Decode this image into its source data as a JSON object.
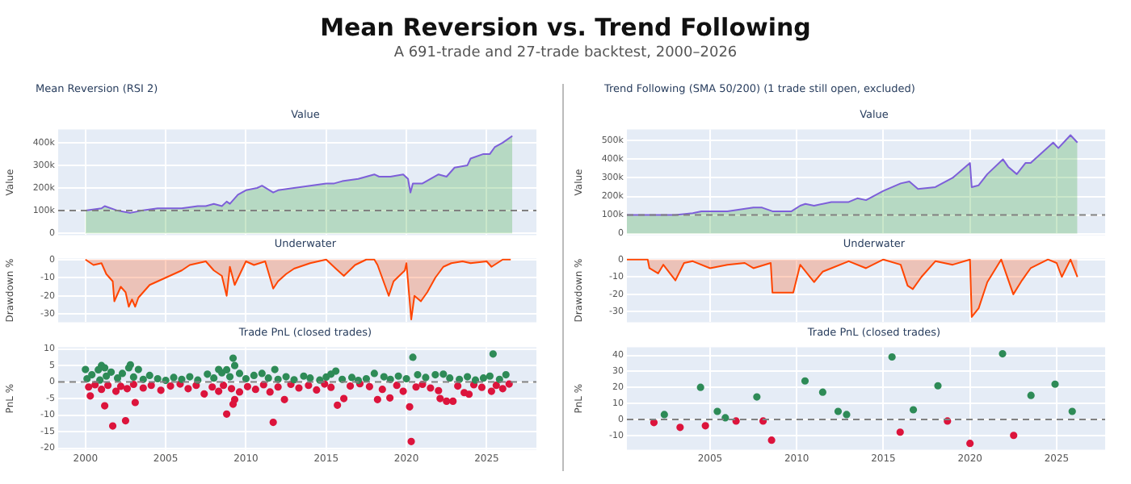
{
  "chart_data": [
    {
      "type": "area",
      "title": "Value",
      "ylabel": "Value",
      "annotations": [
        "Mean Reversion vs. Trend Following",
        "A 691-trade and 27-trade backtest, 2000–2026",
        "Mean Reversion (RSI 2)"
      ],
      "xlim": [
        1998.3,
        2028.1
      ],
      "xticks": [
        2000,
        2005,
        2010,
        2015,
        2020,
        2025
      ],
      "ylim": [
        -8000,
        458000
      ],
      "yticks": [
        0,
        {
          "value": 100000,
          "label": "100k"
        },
        {
          "value": 200000,
          "label": "200k"
        },
        {
          "value": 300000,
          "label": "300k"
        },
        {
          "value": 400000,
          "label": "400k"
        }
      ],
      "grid": true,
      "legend": false,
      "tick_labels": "y",
      "ref_lines": [
        {
          "axis": "y",
          "value": 100000,
          "color": "#808080",
          "line_style": "dashed"
        }
      ],
      "series": [
        {
          "color": "#2ca02c",
          "x": [
            2000,
            2001,
            2001.2,
            2002,
            2002.8,
            2003.5,
            2004.5,
            2005,
            2006,
            2007,
            2007.5,
            2008,
            2008.5,
            2008.8,
            2009,
            2009.5,
            2010,
            2010.7,
            2011,
            2011.7,
            2012,
            2013,
            2014,
            2015,
            2015.5,
            2016,
            2017,
            2018,
            2018.3,
            2019,
            2019.8,
            2020.1,
            2020.25,
            2020.4,
            2021,
            2022,
            2022.5,
            2023,
            2023.8,
            2024,
            2024.8,
            2025.2,
            2025.5,
            2026,
            2026.6
          ],
          "values": [
            100000,
            110000,
            120000,
            100000,
            90000,
            100000,
            110000,
            110000,
            110000,
            120000,
            120000,
            130000,
            120000,
            140000,
            130000,
            170000,
            190000,
            200000,
            210000,
            180000,
            190000,
            200000,
            210000,
            220000,
            220000,
            230000,
            240000,
            260000,
            250000,
            250000,
            260000,
            240000,
            180000,
            220000,
            220000,
            260000,
            250000,
            290000,
            300000,
            330000,
            350000,
            350000,
            380000,
            400000,
            430000
          ]
        },
        {
          "type": "line",
          "color": "#7d5fd9",
          "x": [
            2000,
            2001,
            2001.2,
            2002,
            2002.8,
            2003.5,
            2004.5,
            2005,
            2006,
            2007,
            2007.5,
            2008,
            2008.5,
            2008.8,
            2009,
            2009.5,
            2010,
            2010.7,
            2011,
            2011.7,
            2012,
            2013,
            2014,
            2015,
            2015.5,
            2016,
            2017,
            2018,
            2018.3,
            2019,
            2019.8,
            2020.1,
            2020.25,
            2020.4,
            2021,
            2022,
            2022.5,
            2023,
            2023.8,
            2024,
            2024.8,
            2025.2,
            2025.5,
            2026,
            2026.6
          ],
          "values": [
            100000,
            110000,
            120000,
            100000,
            90000,
            100000,
            110000,
            110000,
            110000,
            120000,
            120000,
            130000,
            120000,
            140000,
            130000,
            170000,
            190000,
            200000,
            210000,
            180000,
            190000,
            200000,
            210000,
            220000,
            220000,
            230000,
            240000,
            260000,
            250000,
            250000,
            260000,
            240000,
            180000,
            220000,
            220000,
            260000,
            250000,
            290000,
            300000,
            330000,
            350000,
            350000,
            380000,
            400000,
            430000
          ]
        }
      ]
    },
    {
      "type": "area",
      "title": "Underwater",
      "ylabel": "Drawdown %",
      "xlim": [
        1998.3,
        2028.1
      ],
      "xticks": [
        2000,
        2005,
        2010,
        2015,
        2020,
        2025
      ],
      "ylim": [
        -34.5,
        0.5
      ],
      "yticks": [
        -30,
        -20,
        -10,
        0
      ],
      "grid": true,
      "legend": false,
      "tick_labels": "y",
      "series": [
        {
          "color": "#ff4500",
          "x": [
            2000,
            2000.5,
            2001,
            2001.3,
            2001.7,
            2001.8,
            2002.2,
            2002.5,
            2002.7,
            2002.9,
            2003.1,
            2003.3,
            2004,
            2005,
            2006,
            2006.5,
            2007.5,
            2008,
            2008.5,
            2008.8,
            2009,
            2009.3,
            2010,
            2010.5,
            2011.2,
            2011.7,
            2012,
            2012.5,
            2013,
            2014,
            2015,
            2015.6,
            2016.1,
            2016.8,
            2017.5,
            2018,
            2018.2,
            2018.9,
            2019.2,
            2019.9,
            2020,
            2020.3,
            2020.5,
            2020.9,
            2021.3,
            2021.8,
            2022.3,
            2022.8,
            2023.5,
            2024,
            2025,
            2025.3,
            2026,
            2026.5
          ],
          "values": [
            0,
            -3,
            -2,
            -8,
            -12,
            -23,
            -15,
            -18,
            -26,
            -22,
            -26,
            -21,
            -14,
            -10,
            -6,
            -3,
            -1,
            -6,
            -9,
            -20,
            -4,
            -14,
            -1,
            -3,
            -1,
            -16,
            -12,
            -8,
            -5,
            -2,
            0,
            -5,
            -9,
            -3,
            0,
            0,
            -3,
            -20,
            -12,
            -6,
            -2,
            -33,
            -20,
            -23,
            -18,
            -10,
            -4,
            -2,
            -1,
            -2,
            -1,
            -4,
            0,
            0
          ]
        }
      ]
    },
    {
      "type": "scatter",
      "title": "Trade PnL (closed trades)",
      "ylabel": "PnL %",
      "xlim": [
        1998.3,
        2028.1
      ],
      "xticks": [
        2000,
        2005,
        2010,
        2015,
        2020,
        2025
      ],
      "ylim": [
        -20.5,
        10.5
      ],
      "yticks": [
        -20,
        -15,
        -10,
        -5,
        0,
        5,
        10
      ],
      "grid": true,
      "legend": false,
      "marker": "circle",
      "ref_lines": [
        {
          "axis": "y",
          "value": 0,
          "color": "#808080",
          "line_style": "dashed"
        }
      ],
      "series": [
        {
          "color": "#2e8b57",
          "x": [
            2000,
            2000.8,
            2001,
            2001.2,
            2002.7,
            2002.8,
            2003.3,
            2008.3,
            2008.8,
            2009.2,
            2009.3,
            2011.8,
            2015.6,
            2020.4,
            2025.4,
            2000.1,
            2000.4,
            2000.9,
            2001.3,
            2001.6,
            2002,
            2002.3,
            2003,
            2003.6,
            2004,
            2004.5,
            2005,
            2005.5,
            2006,
            2006.5,
            2007,
            2007.6,
            2008,
            2008.5,
            2009,
            2009.6,
            2010,
            2010.5,
            2011,
            2011.4,
            2012,
            2012.5,
            2013,
            2013.6,
            2014,
            2014.6,
            2015,
            2015.3,
            2016,
            2016.6,
            2017,
            2017.5,
            2018,
            2018.6,
            2019,
            2019.5,
            2020,
            2020.7,
            2021.2,
            2021.8,
            2022.3,
            2022.7,
            2023.3,
            2023.8,
            2024.3,
            2024.8,
            2025.2,
            2025.8,
            2026.2
          ],
          "values": [
            3.8,
            3.7,
            5,
            4.3,
            4.3,
            5.2,
            3.8,
            3.8,
            3.7,
            7.2,
            5,
            3.8,
            3.3,
            7.5,
            8.5,
            1,
            2.2,
            0.6,
            1.8,
            3,
            1.2,
            2.6,
            1.5,
            0.8,
            2,
            1,
            0.5,
            1.4,
            0.8,
            1.6,
            0.6,
            2.4,
            1.2,
            2.8,
            1.6,
            2.6,
            1,
            2,
            2.6,
            1.2,
            0.8,
            1.6,
            0.7,
            1.8,
            1.2,
            0.6,
            1.5,
            2.4,
            0.8,
            1.4,
            0.5,
            1,
            2.6,
            1.6,
            0.8,
            1.8,
            1,
            2.2,
            1.4,
            2.2,
            2.4,
            1.2,
            0.8,
            1.6,
            0.6,
            1.2,
            1.8,
            0.8,
            2.2
          ]
        },
        {
          "color": "#dc143c",
          "x": [
            2000.3,
            2001.2,
            2001.7,
            2002.5,
            2003.1,
            2008.8,
            2009.2,
            2009.3,
            2011.7,
            2012.4,
            2015.7,
            2016.1,
            2018.2,
            2018.97,
            2020.2,
            2020.3,
            2022.1,
            2022.5,
            2022.9,
            2023.9,
            2025.3,
            2000.2,
            2000.6,
            2001,
            2001.4,
            2001.9,
            2002.2,
            2002.6,
            2003,
            2003.6,
            2004.1,
            2004.7,
            2005.3,
            2005.9,
            2006.4,
            2006.9,
            2007.4,
            2007.9,
            2008.3,
            2008.6,
            2009.1,
            2009.6,
            2010.1,
            2010.6,
            2011.1,
            2011.5,
            2012,
            2012.8,
            2013.3,
            2013.9,
            2014.4,
            2014.9,
            2015.3,
            2016.5,
            2017.1,
            2017.7,
            2018.5,
            2019.4,
            2019.8,
            2020.6,
            2021,
            2021.5,
            2022,
            2023.2,
            2023.6,
            2024.2,
            2024.7,
            2025.6,
            2026,
            2026.4
          ],
          "values": [
            -4.2,
            -7.2,
            -13.3,
            -11.7,
            -6.2,
            -9.7,
            -6.7,
            -5.3,
            -12.2,
            -5.3,
            -7,
            -5,
            -5.3,
            -4.8,
            -7.5,
            -18,
            -5,
            -5.8,
            -5.8,
            -3.7,
            -2.8,
            -1.5,
            -0.8,
            -2.2,
            -1,
            -2.8,
            -1.3,
            -2,
            -0.7,
            -1.8,
            -1,
            -2.5,
            -1.2,
            -0.6,
            -2,
            -1,
            -3.6,
            -1.5,
            -2.8,
            -1,
            -2,
            -3,
            -1.4,
            -2.2,
            -0.8,
            -3,
            -1.5,
            -0.7,
            -1.8,
            -1,
            -2.4,
            -0.6,
            -1.6,
            -1.2,
            -0.5,
            -1.4,
            -2.2,
            -1,
            -2.8,
            -1.5,
            -0.7,
            -1.8,
            -2.6,
            -1.2,
            -3.2,
            -0.8,
            -1.6,
            -1,
            -2,
            -0.6
          ]
        }
      ]
    },
    {
      "type": "area",
      "title": "Value",
      "ylabel": "Value",
      "annotations": [
        "Trend Following (SMA 50/200) (1 trade still open, excluded)"
      ],
      "xlim": [
        2000.2,
        2027.8
      ],
      "xticks": [
        2005,
        2010,
        2015,
        2020,
        2025
      ],
      "ylim": [
        -8000,
        560000
      ],
      "yticks": [
        0,
        {
          "value": 100000,
          "label": "100k"
        },
        {
          "value": 200000,
          "label": "200k"
        },
        {
          "value": 300000,
          "label": "300k"
        },
        {
          "value": 400000,
          "label": "400k"
        },
        {
          "value": 500000,
          "label": "500k"
        }
      ],
      "grid": true,
      "legend": false,
      "tick_labels": "y",
      "ref_lines": [
        {
          "axis": "y",
          "value": 100000,
          "color": "#808080",
          "line_style": "dashed"
        }
      ],
      "series": [
        {
          "color": "#2ca02c",
          "x": [
            2000.2,
            2003,
            2004,
            2004.5,
            2006,
            2007.5,
            2008,
            2008.6,
            2009.7,
            2010.2,
            2010.5,
            2011,
            2012,
            2013,
            2013.5,
            2014,
            2015,
            2016,
            2016.5,
            2017,
            2018,
            2019,
            2020,
            2020.1,
            2020.5,
            2021,
            2021.9,
            2022.2,
            2022.7,
            2023.2,
            2023.5,
            2024.8,
            2025.1,
            2025.8,
            2026.2
          ],
          "values": [
            100000,
            100000,
            110000,
            120000,
            120000,
            140000,
            140000,
            120000,
            120000,
            150000,
            160000,
            150000,
            170000,
            170000,
            190000,
            180000,
            230000,
            270000,
            280000,
            240000,
            250000,
            300000,
            380000,
            250000,
            260000,
            320000,
            400000,
            360000,
            320000,
            380000,
            380000,
            490000,
            460000,
            530000,
            490000
          ]
        },
        {
          "type": "line",
          "color": "#7d5fd9",
          "x": [
            2000.2,
            2003,
            2004,
            2004.5,
            2006,
            2007.5,
            2008,
            2008.6,
            2009.7,
            2010.2,
            2010.5,
            2011,
            2012,
            2013,
            2013.5,
            2014,
            2015,
            2016,
            2016.5,
            2017,
            2018,
            2019,
            2020,
            2020.1,
            2020.5,
            2021,
            2021.9,
            2022.2,
            2022.7,
            2023.2,
            2023.5,
            2024.8,
            2025.1,
            2025.8,
            2026.2
          ],
          "values": [
            100000,
            100000,
            110000,
            120000,
            120000,
            140000,
            140000,
            120000,
            120000,
            150000,
            160000,
            150000,
            170000,
            170000,
            190000,
            180000,
            230000,
            270000,
            280000,
            240000,
            250000,
            300000,
            380000,
            250000,
            260000,
            320000,
            400000,
            360000,
            320000,
            380000,
            380000,
            490000,
            460000,
            530000,
            490000
          ]
        }
      ]
    },
    {
      "type": "area",
      "title": "Underwater",
      "ylabel": "Drawdown %",
      "xlim": [
        2000.2,
        2027.8
      ],
      "xticks": [
        2005,
        2010,
        2015,
        2020,
        2025
      ],
      "ylim": [
        -36,
        0.5
      ],
      "yticks": [
        -30,
        -20,
        -10,
        0
      ],
      "grid": true,
      "legend": false,
      "tick_labels": "y",
      "series": [
        {
          "color": "#ff4500",
          "x": [
            2000.2,
            2001.4,
            2001.5,
            2002,
            2002.3,
            2003,
            2003.5,
            2004,
            2005,
            2006,
            2007,
            2007.5,
            2008.5,
            2008.6,
            2009.8,
            2010.2,
            2011,
            2011.5,
            2012,
            2013,
            2014,
            2015,
            2016,
            2016.4,
            2016.7,
            2017.2,
            2018,
            2019,
            2020,
            2020.1,
            2020.5,
            2021,
            2021.8,
            2022.5,
            2023,
            2023.5,
            2024.5,
            2025,
            2025.3,
            2025.8,
            2026.2
          ],
          "values": [
            0,
            0,
            -5,
            -8,
            -3,
            -12,
            -2,
            -1,
            -5,
            -3,
            -2,
            -5,
            -2,
            -19,
            -19,
            -3,
            -13,
            -7,
            -5,
            -1,
            -5,
            0,
            -3,
            -15,
            -17,
            -10,
            -1,
            -3,
            0,
            -33,
            -28,
            -13,
            0,
            -20,
            -12,
            -5,
            0,
            -2,
            -10,
            0,
            -10
          ]
        }
      ]
    },
    {
      "type": "scatter",
      "title": "Trade PnL (closed trades)",
      "ylabel": "PnL %",
      "xlim": [
        2000.2,
        2027.8
      ],
      "xticks": [
        2005,
        2010,
        2015,
        2020,
        2025
      ],
      "ylim": [
        -19,
        45
      ],
      "yticks": [
        -10,
        0,
        10,
        20,
        30,
        40
      ],
      "grid": true,
      "legend": false,
      "marker": "circle",
      "ref_lines": [
        {
          "axis": "y",
          "value": 0,
          "color": "#808080",
          "line_style": "dashed"
        }
      ],
      "series": [
        {
          "color": "#2e8b57",
          "x": [
            2002.36,
            2004.45,
            2005.42,
            2005.88,
            2007.7,
            2010.48,
            2011.5,
            2012.39,
            2012.88,
            2015.5,
            2016.73,
            2018.15,
            2021.88,
            2023.52,
            2024.91,
            2025.9
          ],
          "values": [
            3,
            20,
            5,
            1,
            14,
            24,
            17,
            5,
            3,
            39,
            6,
            21,
            41,
            15,
            22,
            5
          ]
        },
        {
          "color": "#dc143c",
          "x": [
            2001.76,
            2003.27,
            2004.73,
            2006.5,
            2008.06,
            2008.55,
            2015.97,
            2018.7,
            2020,
            2022.52
          ],
          "values": [
            -2,
            -5,
            -4,
            -1,
            -1,
            -13,
            -8,
            -1,
            -15,
            -10
          ]
        }
      ]
    }
  ]
}
